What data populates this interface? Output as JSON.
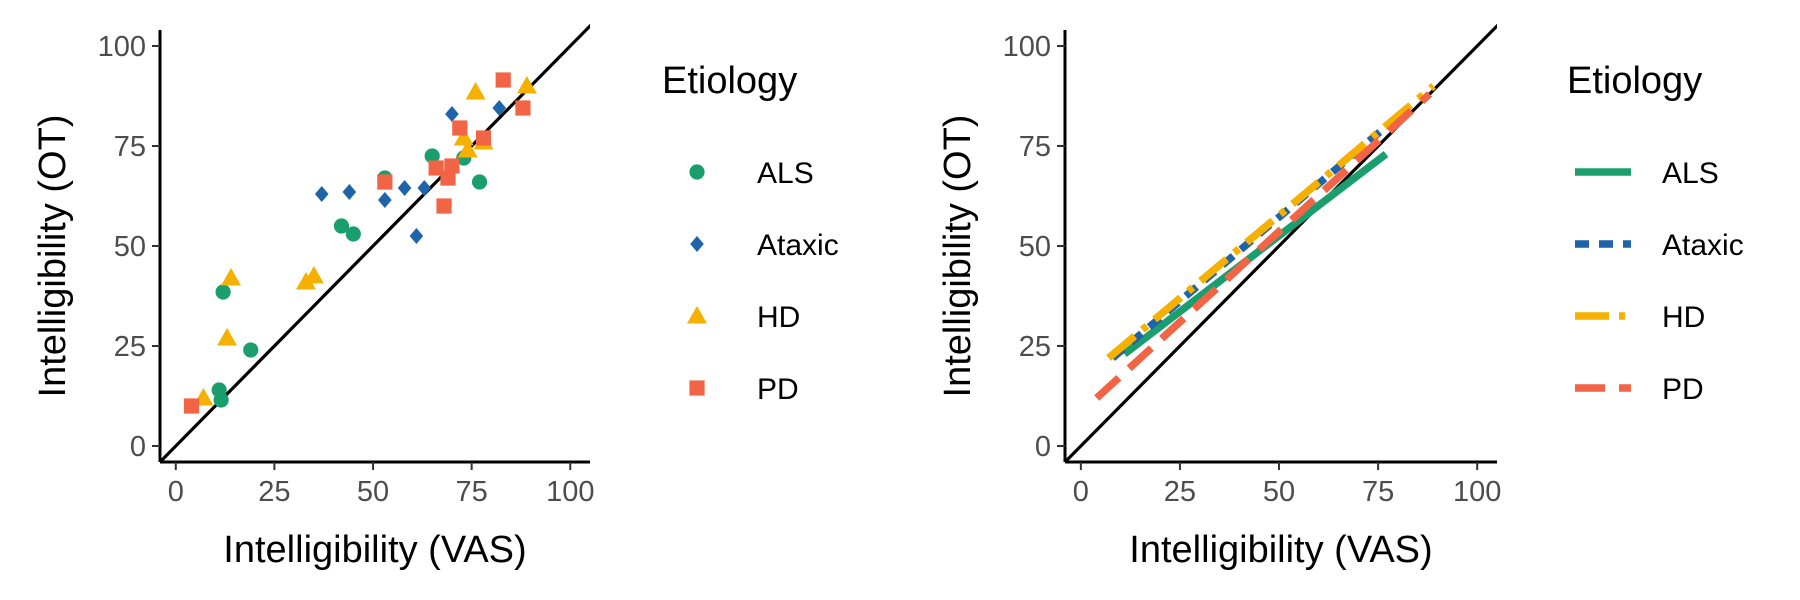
{
  "chart_data": [
    {
      "type": "scatter",
      "title": "",
      "xlabel": "Intelligibility (VAS)",
      "ylabel": "Intelligibility (OT)",
      "xlim": [
        -4,
        105
      ],
      "ylim": [
        -4,
        104
      ],
      "xticks": [
        0,
        25,
        50,
        75,
        100
      ],
      "yticks": [
        0,
        25,
        50,
        75,
        100
      ],
      "xtick_labels": [
        "0",
        "25",
        "50",
        "75",
        "100"
      ],
      "ytick_labels": [
        "0",
        "25",
        "50",
        "75",
        "100"
      ],
      "reference_line": "identity (y = x)",
      "grid": false,
      "legend": {
        "title": "Etiology",
        "position": "right"
      },
      "series": [
        {
          "name": "ALS",
          "marker": "circle",
          "color": "#1b9e6e",
          "points": [
            [
              11,
              14
            ],
            [
              11.5,
              11.5
            ],
            [
              12,
              38.5
            ],
            [
              19,
              24
            ],
            [
              42,
              55
            ],
            [
              45,
              53
            ],
            [
              53,
              67
            ],
            [
              65,
              72.5
            ],
            [
              73,
              72
            ],
            [
              77,
              66
            ]
          ]
        },
        {
          "name": "Ataxic",
          "marker": "diamond",
          "color": "#1f63a8",
          "points": [
            [
              37,
              63
            ],
            [
              44,
              63.5
            ],
            [
              53,
              61.5
            ],
            [
              58,
              64.5
            ],
            [
              61,
              52.5
            ],
            [
              63,
              64.5
            ],
            [
              70,
              83
            ],
            [
              82,
              84.5
            ]
          ]
        },
        {
          "name": "HD",
          "marker": "triangle",
          "color": "#f5b000",
          "points": [
            [
              7,
              12
            ],
            [
              13,
              27
            ],
            [
              14,
              42
            ],
            [
              33,
              41
            ],
            [
              35,
              42.5
            ],
            [
              73,
              77
            ],
            [
              74,
              74
            ],
            [
              76,
              88.5
            ],
            [
              78,
              76
            ],
            [
              89,
              90
            ]
          ]
        },
        {
          "name": "PD",
          "marker": "square",
          "color": "#f26446",
          "points": [
            [
              4,
              10
            ],
            [
              53,
              66
            ],
            [
              66,
              69.5
            ],
            [
              68,
              60
            ],
            [
              69,
              67
            ],
            [
              70,
              70
            ],
            [
              72,
              79.5
            ],
            [
              78,
              77
            ],
            [
              83,
              91.5
            ],
            [
              88,
              84.5
            ]
          ]
        }
      ]
    },
    {
      "type": "line",
      "title": "",
      "xlabel": "Intelligibility (VAS)",
      "ylabel": "Intelligibility (OT)",
      "xlim": [
        -4,
        105
      ],
      "ylim": [
        -4,
        104
      ],
      "xticks": [
        0,
        25,
        50,
        75,
        100
      ],
      "yticks": [
        0,
        25,
        50,
        75,
        100
      ],
      "xtick_labels": [
        "0",
        "25",
        "50",
        "75",
        "100"
      ],
      "ytick_labels": [
        "0",
        "25",
        "50",
        "75",
        "100"
      ],
      "reference_line": "identity (y = x)",
      "grid": false,
      "legend": {
        "title": "Etiology",
        "position": "right"
      },
      "series": [
        {
          "name": "ALS",
          "linetype": "solid",
          "color": "#1b9e6e",
          "x": [
            11,
            77
          ],
          "y": [
            23,
            73
          ]
        },
        {
          "name": "Ataxic",
          "linetype": "dashed",
          "color": "#1f63a8",
          "x": [
            8,
            82
          ],
          "y": [
            22,
            84
          ]
        },
        {
          "name": "HD",
          "linetype": "longdash-dot",
          "color": "#f5b000",
          "x": [
            7,
            89
          ],
          "y": [
            22,
            90
          ]
        },
        {
          "name": "PD",
          "linetype": "longdash",
          "color": "#f26446",
          "x": [
            4,
            88
          ],
          "y": [
            12,
            88
          ]
        }
      ]
    }
  ]
}
